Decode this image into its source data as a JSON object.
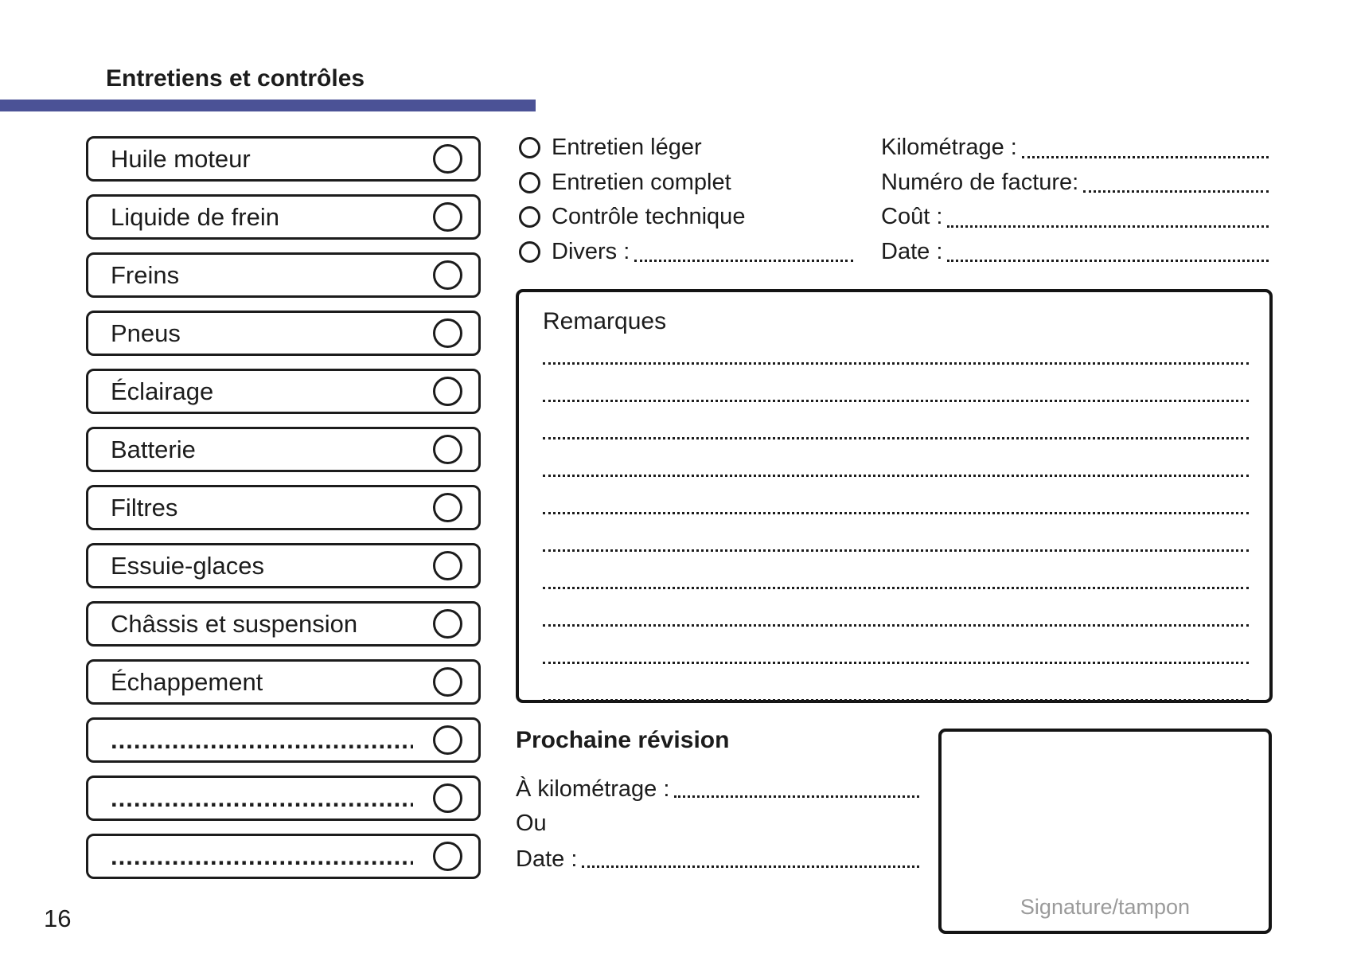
{
  "page": {
    "title": "Entretiens et contrôles",
    "page_number": "16"
  },
  "colors": {
    "accent_bar": "#4B5296",
    "ink": "#1c1c1c",
    "signature_text": "#9a9a9a"
  },
  "checklist": {
    "items": [
      {
        "label": "Huile moteur",
        "type": "text"
      },
      {
        "label": "Liquide de frein",
        "type": "text"
      },
      {
        "label": "Freins",
        "type": "text"
      },
      {
        "label": "Pneus",
        "type": "text"
      },
      {
        "label": "Éclairage",
        "type": "text"
      },
      {
        "label": "Batterie",
        "type": "text"
      },
      {
        "label": "Filtres",
        "type": "text"
      },
      {
        "label": "Essuie-glaces",
        "type": "text"
      },
      {
        "label": "Châssis et suspension",
        "type": "text"
      },
      {
        "label": "Échappement",
        "type": "text"
      },
      {
        "label": "........................................",
        "type": "dots"
      },
      {
        "label": "........................................",
        "type": "dots"
      },
      {
        "label": "........................................",
        "type": "dots"
      }
    ]
  },
  "service_options": {
    "items": [
      "Entretien léger",
      "Entretien complet",
      "Contrôle technique"
    ],
    "divers_label": "Divers :"
  },
  "invoice_fields": {
    "items": [
      "Kilométrage :",
      "Numéro de facture:",
      "Coût :",
      "Date :"
    ]
  },
  "remarks": {
    "title": "Remarques",
    "lines": [
      "",
      "",
      "",
      "",
      "",
      "",
      "",
      "",
      "",
      ""
    ]
  },
  "next_service": {
    "title": "Prochaine révision",
    "km_label": "À kilométrage :",
    "or_label": "Ou",
    "date_label": "Date :"
  },
  "signature": {
    "label": "Signature/tampon"
  }
}
